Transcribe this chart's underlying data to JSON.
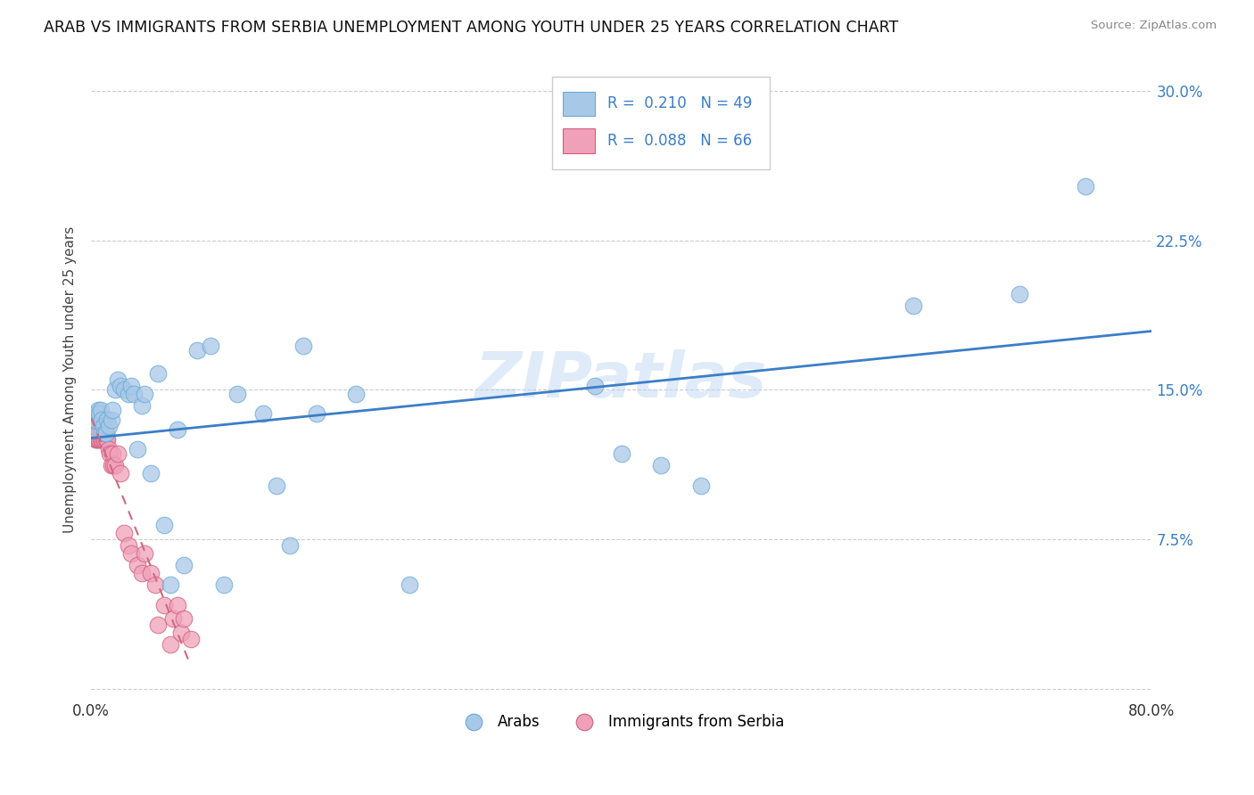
{
  "title": "ARAB VS IMMIGRANTS FROM SERBIA UNEMPLOYMENT AMONG YOUTH UNDER 25 YEARS CORRELATION CHART",
  "source": "Source: ZipAtlas.com",
  "ylabel": "Unemployment Among Youth under 25 years",
  "xlim": [
    0.0,
    0.8
  ],
  "ylim": [
    -0.005,
    0.315
  ],
  "yticks": [
    0.0,
    0.075,
    0.15,
    0.225,
    0.3
  ],
  "ytick_labels": [
    "",
    "7.5%",
    "15.0%",
    "22.5%",
    "30.0%"
  ],
  "xticks": [
    0.0,
    0.1,
    0.2,
    0.3,
    0.4,
    0.5,
    0.6,
    0.7,
    0.8
  ],
  "xtick_labels": [
    "0.0%",
    "",
    "",
    "",
    "",
    "",
    "",
    "",
    "80.0%"
  ],
  "arab_R": 0.21,
  "arab_N": 49,
  "serbia_R": 0.088,
  "serbia_N": 66,
  "legend_label_arab": "Arabs",
  "legend_label_serbia": "Immigrants from Serbia",
  "arab_color": "#a8c8e8",
  "arab_edge_color": "#6aaad4",
  "serbia_color": "#f0a0b8",
  "serbia_edge_color": "#d06080",
  "arab_line_color": "#3a7ec8",
  "serbia_line_color": "#d06880",
  "watermark": "ZIPatlas",
  "arab_x": [
    0.001,
    0.002,
    0.003,
    0.004,
    0.005,
    0.006,
    0.007,
    0.008,
    0.009,
    0.01,
    0.011,
    0.012,
    0.013,
    0.015,
    0.016,
    0.018,
    0.02,
    0.022,
    0.025,
    0.028,
    0.03,
    0.032,
    0.035,
    0.038,
    0.04,
    0.045,
    0.05,
    0.055,
    0.06,
    0.065,
    0.07,
    0.08,
    0.09,
    0.1,
    0.11,
    0.13,
    0.14,
    0.15,
    0.16,
    0.17,
    0.2,
    0.24,
    0.38,
    0.4,
    0.43,
    0.46,
    0.62,
    0.7,
    0.75
  ],
  "arab_y": [
    0.13,
    0.135,
    0.135,
    0.138,
    0.14,
    0.138,
    0.14,
    0.135,
    0.132,
    0.128,
    0.128,
    0.135,
    0.132,
    0.135,
    0.14,
    0.15,
    0.155,
    0.152,
    0.15,
    0.148,
    0.152,
    0.148,
    0.12,
    0.142,
    0.148,
    0.108,
    0.158,
    0.082,
    0.052,
    0.13,
    0.062,
    0.17,
    0.172,
    0.052,
    0.148,
    0.138,
    0.102,
    0.072,
    0.172,
    0.138,
    0.148,
    0.052,
    0.152,
    0.118,
    0.112,
    0.102,
    0.192,
    0.198,
    0.252
  ],
  "serbia_x": [
    0.001,
    0.001,
    0.001,
    0.001,
    0.001,
    0.001,
    0.002,
    0.002,
    0.002,
    0.002,
    0.002,
    0.002,
    0.003,
    0.003,
    0.003,
    0.003,
    0.003,
    0.003,
    0.004,
    0.004,
    0.004,
    0.004,
    0.004,
    0.005,
    0.005,
    0.005,
    0.005,
    0.006,
    0.006,
    0.006,
    0.007,
    0.007,
    0.007,
    0.008,
    0.008,
    0.009,
    0.009,
    0.01,
    0.01,
    0.011,
    0.011,
    0.012,
    0.013,
    0.014,
    0.015,
    0.016,
    0.017,
    0.018,
    0.02,
    0.022,
    0.025,
    0.028,
    0.03,
    0.035,
    0.038,
    0.04,
    0.045,
    0.048,
    0.05,
    0.055,
    0.06,
    0.062,
    0.065,
    0.068,
    0.07,
    0.075
  ],
  "serbia_y": [
    0.13,
    0.13,
    0.132,
    0.132,
    0.13,
    0.128,
    0.132,
    0.13,
    0.128,
    0.13,
    0.132,
    0.128,
    0.13,
    0.128,
    0.132,
    0.13,
    0.128,
    0.125,
    0.13,
    0.128,
    0.125,
    0.128,
    0.13,
    0.132,
    0.128,
    0.125,
    0.13,
    0.128,
    0.13,
    0.125,
    0.13,
    0.128,
    0.125,
    0.128,
    0.125,
    0.128,
    0.125,
    0.128,
    0.125,
    0.128,
    0.125,
    0.125,
    0.12,
    0.118,
    0.112,
    0.118,
    0.112,
    0.112,
    0.118,
    0.108,
    0.078,
    0.072,
    0.068,
    0.062,
    0.058,
    0.068,
    0.058,
    0.052,
    0.032,
    0.042,
    0.022,
    0.035,
    0.042,
    0.028,
    0.035,
    0.025
  ]
}
